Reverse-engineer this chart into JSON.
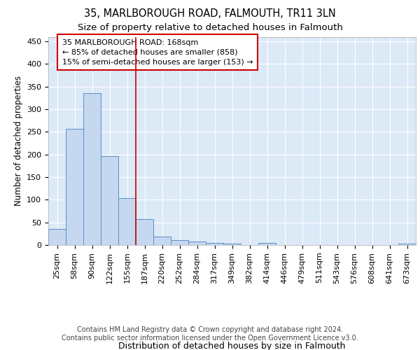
{
  "title": "35, MARLBOROUGH ROAD, FALMOUTH, TR11 3LN",
  "subtitle": "Size of property relative to detached houses in Falmouth",
  "xlabel": "Distribution of detached houses by size in Falmouth",
  "ylabel": "Number of detached properties",
  "bar_labels": [
    "25sqm",
    "58sqm",
    "90sqm",
    "122sqm",
    "155sqm",
    "187sqm",
    "220sqm",
    "252sqm",
    "284sqm",
    "317sqm",
    "349sqm",
    "382sqm",
    "414sqm",
    "446sqm",
    "479sqm",
    "511sqm",
    "543sqm",
    "576sqm",
    "608sqm",
    "641sqm",
    "673sqm"
  ],
  "bar_values": [
    35,
    256,
    336,
    197,
    104,
    57,
    19,
    11,
    8,
    5,
    3,
    0,
    4,
    0,
    0,
    0,
    0,
    0,
    0,
    0,
    3
  ],
  "bar_color": "#c5d8f0",
  "bar_edge_color": "#5b8ec4",
  "vline_x": 4.5,
  "vline_color": "#cc0000",
  "annotation_text": "35 MARLBOROUGH ROAD: 168sqm\n← 85% of detached houses are smaller (858)\n15% of semi-detached houses are larger (153) →",
  "annotation_box_color": "#ffffff",
  "annotation_box_edge": "#cc0000",
  "ylim": [
    0,
    460
  ],
  "yticks": [
    0,
    50,
    100,
    150,
    200,
    250,
    300,
    350,
    400,
    450
  ],
  "background_color": "#dce9f7",
  "footer_text": "Contains HM Land Registry data © Crown copyright and database right 2024.\nContains public sector information licensed under the Open Government Licence v3.0.",
  "title_fontsize": 10.5,
  "subtitle_fontsize": 9.5,
  "xlabel_fontsize": 9,
  "ylabel_fontsize": 8.5,
  "tick_fontsize": 8,
  "annotation_fontsize": 8,
  "footer_fontsize": 7
}
